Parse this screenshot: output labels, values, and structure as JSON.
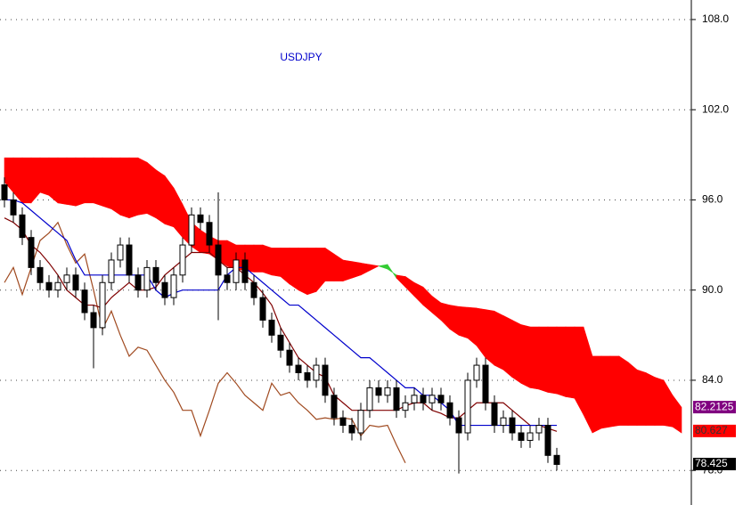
{
  "chart_data": {
    "type": "ichimoku",
    "title": "USDJPY",
    "title_color": "#0000cc",
    "categories": [
      null,
      null,
      null,
      null,
      null,
      null,
      null,
      null,
      null,
      null,
      null,
      null,
      null,
      null,
      null,
      null,
      null,
      null,
      null,
      null,
      null,
      null,
      null,
      null,
      null,
      null,
      null,
      null,
      null,
      null,
      null,
      null,
      null,
      null,
      null,
      null,
      null,
      null,
      null,
      null,
      null,
      null,
      null,
      null,
      null,
      null,
      null,
      null,
      null,
      null,
      null,
      null,
      null,
      null,
      null,
      null,
      null,
      null,
      null,
      null,
      null,
      null,
      null,
      null,
      null,
      null,
      null,
      null,
      null,
      null,
      null,
      null,
      null,
      null,
      null,
      null,
      null
    ],
    "ylim": [
      75.7,
      109.3
    ],
    "yticks": [
      {
        "value": 78,
        "label": "78.0"
      },
      {
        "value": 84,
        "label": "84.0"
      },
      {
        "value": 90,
        "label": "90.0"
      },
      {
        "value": 96,
        "label": "96.0"
      },
      {
        "value": 102,
        "label": "102.0"
      },
      {
        "value": 108,
        "label": "108.0"
      }
    ],
    "grid": true,
    "cloud": {
      "bear_color": "#ff0000",
      "bull_color": "#33cc33",
      "span_a": [
        97.2,
        96.5,
        95.8,
        95.8,
        96.5,
        96.3,
        95.8,
        95.7,
        95.6,
        95.8,
        95.8,
        95.6,
        95.4,
        95.0,
        94.8,
        95.0,
        95.1,
        94.8,
        94.4,
        94.2,
        93.5,
        92.9,
        92.5,
        92.4,
        92.0,
        91.6,
        91.4,
        91.3,
        91.2,
        91.2,
        91.0,
        90.9,
        90.4,
        90.0,
        89.7,
        89.9,
        90.6,
        90.6,
        90.6,
        90.8,
        91.0,
        91.3,
        91.6,
        91.7,
        90.8,
        90.2,
        89.6,
        89.0,
        88.5,
        88.0,
        87.4,
        87.0,
        86.8,
        86.3,
        85.5,
        85.0,
        84.7,
        84.2,
        83.8,
        83.5,
        83.4,
        83.2,
        83.1,
        82.9,
        82.8,
        81.7,
        80.5,
        80.8,
        80.9,
        81.0,
        81.0,
        81.0,
        81.0,
        81.0,
        81.0,
        80.9,
        80.5
      ],
      "span_b": [
        98.8,
        98.8,
        98.8,
        98.8,
        98.8,
        98.8,
        98.8,
        98.8,
        98.8,
        98.8,
        98.8,
        98.8,
        98.8,
        98.8,
        98.8,
        98.8,
        98.5,
        98.0,
        97.6,
        96.8,
        95.7,
        94.5,
        94.0,
        93.6,
        93.3,
        93.3,
        93.0,
        93.0,
        93.0,
        93.0,
        92.8,
        92.8,
        92.8,
        92.8,
        92.8,
        92.8,
        92.8,
        92.4,
        92.0,
        91.9,
        91.8,
        91.7,
        91.6,
        91.4,
        91.0,
        90.9,
        90.5,
        90.2,
        89.6,
        89.15,
        89.0,
        88.9,
        88.85,
        88.8,
        88.7,
        88.6,
        88.3,
        88.0,
        87.7,
        87.55,
        87.55,
        87.55,
        87.55,
        87.55,
        87.55,
        87.55,
        85.6,
        85.6,
        85.6,
        85.6,
        85.2,
        84.7,
        84.5,
        84.2,
        84.0,
        83.0,
        82.2
      ]
    },
    "lines": [
      {
        "color": "#a04a20",
        "values": [
          90.5,
          91.5,
          89.7,
          91.5,
          93.3,
          93.8,
          94.5,
          93.0,
          91.8,
          92.4,
          90.0,
          87.4,
          88.6,
          87.0,
          85.6,
          86.2,
          86.0,
          85.0,
          84.0,
          83.2,
          82.0,
          82.0,
          80.3,
          82.0,
          83.8,
          84.5,
          83.8,
          83.0,
          82.5,
          82.0,
          83.8,
          83.0,
          83.2,
          82.5,
          82.0,
          81.4,
          81.5,
          81.4,
          81.5,
          81.4,
          80.3,
          81.0,
          80.9,
          81.0,
          79.7,
          78.5,
          null,
          null,
          null,
          null,
          null,
          null,
          null,
          null,
          null,
          null,
          null,
          null,
          null,
          null,
          null,
          null,
          null,
          null,
          null,
          null,
          null,
          null,
          null,
          null,
          null,
          null,
          null,
          null,
          null,
          null,
          null
        ]
      },
      {
        "color": "#800000",
        "values": [
          94.8,
          94.5,
          94.0,
          93.0,
          92.5,
          91.8,
          91.0,
          90.0,
          89.5,
          89.0,
          89.0,
          88.8,
          89.5,
          90.0,
          90.5,
          90.0,
          90.0,
          90.2,
          91.0,
          91.5,
          92.0,
          92.5,
          92.5,
          92.5,
          92.0,
          91.5,
          91.5,
          91.0,
          90.5,
          89.8,
          89.0,
          87.5,
          86.5,
          85.5,
          85.0,
          84.5,
          84.2,
          83.0,
          82.5,
          82.0,
          82.0,
          82.0,
          82.0,
          82.0,
          82.0,
          82.3,
          82.5,
          82.5,
          82.0,
          81.8,
          81.5,
          81.5,
          82.0,
          82.5,
          82.5,
          82.5,
          82.5,
          82.0,
          81.5,
          81.0,
          81.0,
          80.8,
          80.6,
          null,
          null,
          null,
          null,
          null,
          null,
          null,
          null,
          null,
          null,
          null,
          null,
          null,
          null
        ]
      },
      {
        "color": "#0000cc",
        "values": [
          96.0,
          96.0,
          95.8,
          95.3,
          94.8,
          94.3,
          93.8,
          93.3,
          92.0,
          91.0,
          91.0,
          91.0,
          91.0,
          91.0,
          91.0,
          91.0,
          91.0,
          90.0,
          89.5,
          89.8,
          90.0,
          90.0,
          90.0,
          90.0,
          90.0,
          91.0,
          91.5,
          91.5,
          91.0,
          90.5,
          90.0,
          89.5,
          89.0,
          89.0,
          88.5,
          88.0,
          87.5,
          87.0,
          86.5,
          86.0,
          85.5,
          85.5,
          85.0,
          84.5,
          84.0,
          83.5,
          83.5,
          83.0,
          83.0,
          82.5,
          82.0,
          81.0,
          81.0,
          81.0,
          81.0,
          81.0,
          81.0,
          81.0,
          81.0,
          81.0,
          81.0,
          81.0,
          81.0,
          null,
          null,
          null,
          null,
          null,
          null,
          null,
          null,
          null,
          null,
          null,
          null,
          null,
          null
        ]
      }
    ],
    "candles": {
      "up_color": "#ffffff",
      "down_color": "#000000",
      "open": [
        97,
        96,
        95,
        93.5,
        91.5,
        90.5,
        90,
        90.5,
        91,
        90,
        88.5,
        87.5,
        90.5,
        92,
        93,
        91,
        90,
        91.5,
        90.5,
        89.5,
        91,
        93,
        95,
        94.5,
        93,
        91,
        90.5,
        92,
        90.5,
        89.5,
        88,
        87,
        86,
        85,
        84.5,
        84,
        85,
        83,
        81.5,
        81,
        80.5,
        82,
        83.5,
        83,
        83.5,
        82,
        82.5,
        83,
        82.5,
        83,
        82.5,
        81.5,
        80.5,
        84,
        85,
        82.5,
        81,
        81.5,
        80.5,
        80,
        80.5,
        81,
        79,
        null,
        null,
        null,
        null,
        null,
        null,
        null,
        null,
        null,
        null,
        null,
        null,
        null,
        null
      ],
      "high": [
        97.5,
        96.5,
        95.5,
        94,
        92,
        91,
        91,
        91.5,
        91.5,
        90.5,
        89,
        91,
        92.5,
        93.5,
        93.5,
        91.5,
        92,
        92,
        91,
        91.5,
        93.5,
        95.5,
        95.5,
        95,
        96.5,
        91.5,
        92.5,
        92.5,
        91,
        90,
        88.5,
        87.5,
        86.5,
        85.5,
        85,
        85.5,
        85.5,
        83.5,
        82,
        81.5,
        82.5,
        84,
        84,
        84,
        84,
        83,
        83.5,
        83.5,
        83.5,
        83.5,
        83,
        82,
        84.5,
        85.5,
        85.5,
        83,
        82,
        82,
        81,
        81,
        81.5,
        81.5,
        79.5,
        null,
        null,
        null,
        null,
        null,
        null,
        null,
        null,
        null,
        null,
        null,
        null,
        null,
        null
      ],
      "low": [
        95.5,
        94.5,
        93,
        91,
        90,
        89.5,
        89.5,
        90,
        89.5,
        88,
        84.8,
        87,
        90,
        91.5,
        90.5,
        89.5,
        89.5,
        90,
        89,
        89,
        90.5,
        92.5,
        94,
        92.5,
        88,
        90,
        90,
        90,
        89,
        87.5,
        86.5,
        85.5,
        84.5,
        84,
        83.5,
        83.5,
        82.5,
        81,
        80.5,
        80,
        80,
        81.5,
        82.5,
        82.5,
        81.5,
        81.5,
        82,
        82,
        82,
        82,
        81,
        77.8,
        80,
        83.5,
        82,
        80.5,
        80.5,
        80,
        79.5,
        79.5,
        80,
        78.5,
        78,
        null,
        null,
        null,
        null,
        null,
        null,
        null,
        null,
        null,
        null,
        null,
        null,
        null,
        null
      ],
      "close": [
        96,
        95,
        93.5,
        91.5,
        90.5,
        90,
        90.5,
        91,
        90,
        88.5,
        87.5,
        90.5,
        92,
        93,
        91,
        90,
        91.5,
        90.5,
        89.5,
        91,
        93,
        95,
        94.5,
        93,
        91,
        90.5,
        92,
        90.5,
        89.5,
        88,
        87,
        86,
        85,
        84.5,
        84,
        85,
        83,
        81.5,
        81,
        80.5,
        82,
        83.5,
        83,
        83.5,
        82,
        82.5,
        83,
        82.5,
        83,
        82.5,
        81.5,
        80.5,
        84,
        85,
        82.5,
        81,
        81.5,
        80.5,
        80,
        80.5,
        81,
        79,
        78.4,
        null,
        null,
        null,
        null,
        null,
        null,
        null,
        null,
        null,
        null,
        null,
        null,
        null,
        null
      ]
    },
    "price_labels": [
      {
        "value": 82.2125,
        "color": "#800080",
        "text_color": "#ffffff"
      },
      {
        "value": 80.627,
        "color": "#ff0000",
        "text_color": "#333333"
      },
      {
        "value": 78.425,
        "color": "#000000",
        "text_color": "#ffffff"
      }
    ]
  }
}
